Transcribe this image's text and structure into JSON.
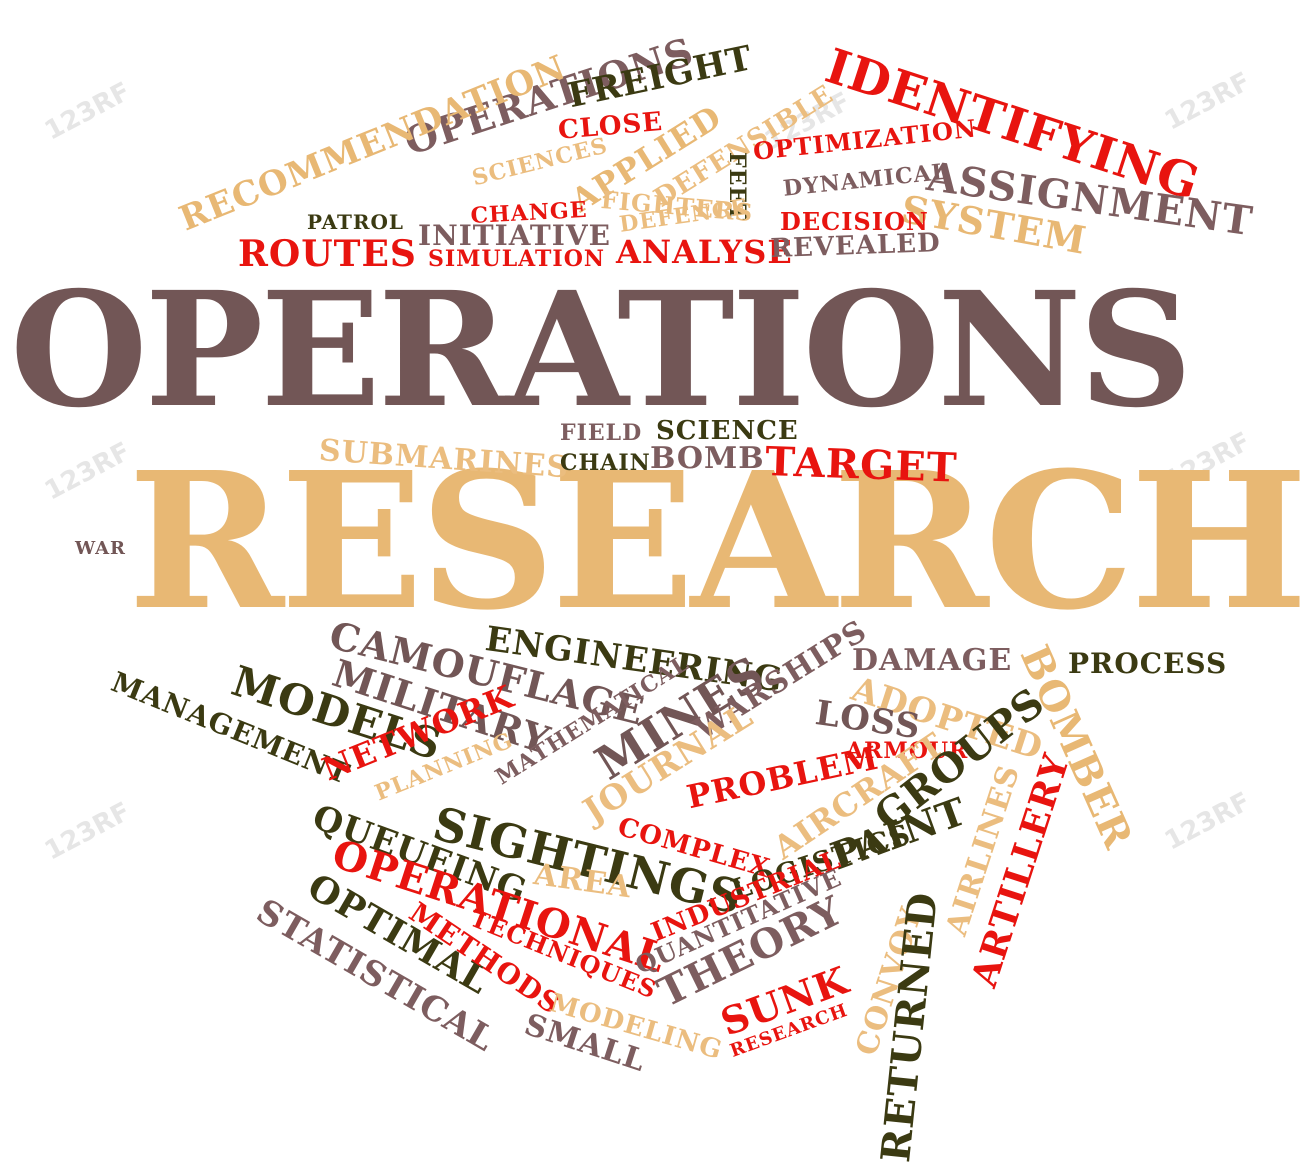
{
  "watermark": "123RF",
  "words": [
    {
      "id": "operations-main",
      "text": "OPERATIONS",
      "color": "#725656"
    },
    {
      "id": "research-main",
      "text": "RESEARCH",
      "color": "#e8b874"
    },
    {
      "id": "operations-small",
      "text": "OPERATIONS",
      "color": "#725656"
    },
    {
      "id": "freight",
      "text": "FREIGHT",
      "color": "#3b3a12"
    },
    {
      "id": "identifying",
      "text": "IDENTIFYING",
      "color": "#e8140f"
    },
    {
      "id": "close",
      "text": "CLOSE",
      "color": "#e8140f"
    },
    {
      "id": "recommendation",
      "text": "RECOMMENDATION",
      "color": "#e8b874"
    },
    {
      "id": "sciences",
      "text": "SCIENCES",
      "color": "#e8b874"
    },
    {
      "id": "applied",
      "text": "APPLIED",
      "color": "#e8b874"
    },
    {
      "id": "defensible",
      "text": "DEFENSIBLE",
      "color": "#e8b874"
    },
    {
      "id": "feet",
      "text": "FEET",
      "color": "#3b3a12"
    },
    {
      "id": "optimization",
      "text": "OPTIMIZATION",
      "color": "#e8140f"
    },
    {
      "id": "dynamical",
      "text": "DYNAMICAL",
      "color": "#725656"
    },
    {
      "id": "assignment",
      "text": "ASSIGNMENT",
      "color": "#725656"
    },
    {
      "id": "system",
      "text": "SYSTEM",
      "color": "#e8b874"
    },
    {
      "id": "patrol",
      "text": "PATROL",
      "color": "#3b3a12"
    },
    {
      "id": "change",
      "text": "CHANGE",
      "color": "#e8140f"
    },
    {
      "id": "fighters",
      "text": "FIGHTERS",
      "color": "#e8b874"
    },
    {
      "id": "defence",
      "text": "DEFENCE",
      "color": "#e8b874"
    },
    {
      "id": "decision",
      "text": "DECISION",
      "color": "#e8140f"
    },
    {
      "id": "routes",
      "text": "ROUTES",
      "color": "#e8140f"
    },
    {
      "id": "initiative",
      "text": "INITIATIVE",
      "color": "#725656"
    },
    {
      "id": "simulation",
      "text": "SIMULATION",
      "color": "#e8140f"
    },
    {
      "id": "analyse",
      "text": "ANALYSE",
      "color": "#e8140f"
    },
    {
      "id": "revealed",
      "text": "REVEALED",
      "color": "#725656"
    },
    {
      "id": "field",
      "text": "FIELD",
      "color": "#725656"
    },
    {
      "id": "science",
      "text": "SCIENCE",
      "color": "#3b3a12"
    },
    {
      "id": "submarines",
      "text": "SUBMARINES",
      "color": "#e8b874"
    },
    {
      "id": "chain",
      "text": "CHAIN",
      "color": "#3b3a12"
    },
    {
      "id": "bomb",
      "text": "BOMB",
      "color": "#725656"
    },
    {
      "id": "target",
      "text": "TARGET",
      "color": "#e8140f"
    },
    {
      "id": "war",
      "text": "WAR",
      "color": "#725656"
    },
    {
      "id": "camouflage",
      "text": "CAMOUFLAGE",
      "color": "#725656"
    },
    {
      "id": "engineering",
      "text": "ENGINEERING",
      "color": "#3b3a12"
    },
    {
      "id": "damage",
      "text": "DAMAGE",
      "color": "#725656"
    },
    {
      "id": "process",
      "text": "PROCESS",
      "color": "#3b3a12"
    },
    {
      "id": "military",
      "text": "MILITARY",
      "color": "#725656"
    },
    {
      "id": "models",
      "text": "MODELS",
      "color": "#3b3a12"
    },
    {
      "id": "management",
      "text": "MANAGEMENT",
      "color": "#3b3a12"
    },
    {
      "id": "mathematical",
      "text": "MATHEMATICAL",
      "color": "#725656"
    },
    {
      "id": "mines",
      "text": "MINES",
      "color": "#725656"
    },
    {
      "id": "warships",
      "text": "WARSHIPS",
      "color": "#725656"
    },
    {
      "id": "adopted",
      "text": "ADOPTED",
      "color": "#e8b874"
    },
    {
      "id": "bomber",
      "text": "BOMBER",
      "color": "#e8b874"
    },
    {
      "id": "loss",
      "text": "LOSS",
      "color": "#725656"
    },
    {
      "id": "network",
      "text": "NETWORK",
      "color": "#e8140f"
    },
    {
      "id": "planning",
      "text": "PLANNING",
      "color": "#e8b874"
    },
    {
      "id": "journal",
      "text": "JOURNAL",
      "color": "#e8b874"
    },
    {
      "id": "armour",
      "text": "ARMOUR",
      "color": "#e8140f"
    },
    {
      "id": "problem",
      "text": "PROBLEM",
      "color": "#e8140f"
    },
    {
      "id": "aircraft",
      "text": "AIRCRAFT",
      "color": "#e8b874"
    },
    {
      "id": "groups",
      "text": "GROUPS",
      "color": "#3b3a12"
    },
    {
      "id": "sightings",
      "text": "SIGHTINGS",
      "color": "#3b3a12"
    },
    {
      "id": "queueing",
      "text": "QUEUEING",
      "color": "#3b3a12"
    },
    {
      "id": "complex",
      "text": "COMPLEX",
      "color": "#e8140f"
    },
    {
      "id": "logistics",
      "text": "LOGISTICS",
      "color": "#3b3a12"
    },
    {
      "id": "airlines",
      "text": "AIRLINES",
      "color": "#e8b874"
    },
    {
      "id": "artillery",
      "text": "ARTILLERY",
      "color": "#e8140f"
    },
    {
      "id": "operational",
      "text": "OPERATIONAL",
      "color": "#e8140f"
    },
    {
      "id": "area",
      "text": "AREA",
      "color": "#e8b874"
    },
    {
      "id": "paint",
      "text": "PAINT",
      "color": "#3b3a12"
    },
    {
      "id": "optimal",
      "text": "OPTIMAL",
      "color": "#3b3a12"
    },
    {
      "id": "industrial",
      "text": "INDUSTRIAL",
      "color": "#e8140f"
    },
    {
      "id": "quantitative",
      "text": "QUANTITATIVE",
      "color": "#725656"
    },
    {
      "id": "statistical",
      "text": "STATISTICAL",
      "color": "#725656"
    },
    {
      "id": "methods",
      "text": "METHODS",
      "color": "#e8140f"
    },
    {
      "id": "techniques",
      "text": "TECHNIQUES",
      "color": "#e8140f"
    },
    {
      "id": "theory",
      "text": "THEORY",
      "color": "#725656"
    },
    {
      "id": "convoy",
      "text": "CONVOY",
      "color": "#e8b874"
    },
    {
      "id": "returned",
      "text": "RETURNED",
      "color": "#3b3a12"
    },
    {
      "id": "modeling",
      "text": "MODELING",
      "color": "#e8b874"
    },
    {
      "id": "sunk",
      "text": "SUNK",
      "color": "#e8140f"
    },
    {
      "id": "small",
      "text": "SMALL",
      "color": "#725656"
    },
    {
      "id": "research-small",
      "text": "RESEARCH",
      "color": "#e8140f"
    }
  ]
}
